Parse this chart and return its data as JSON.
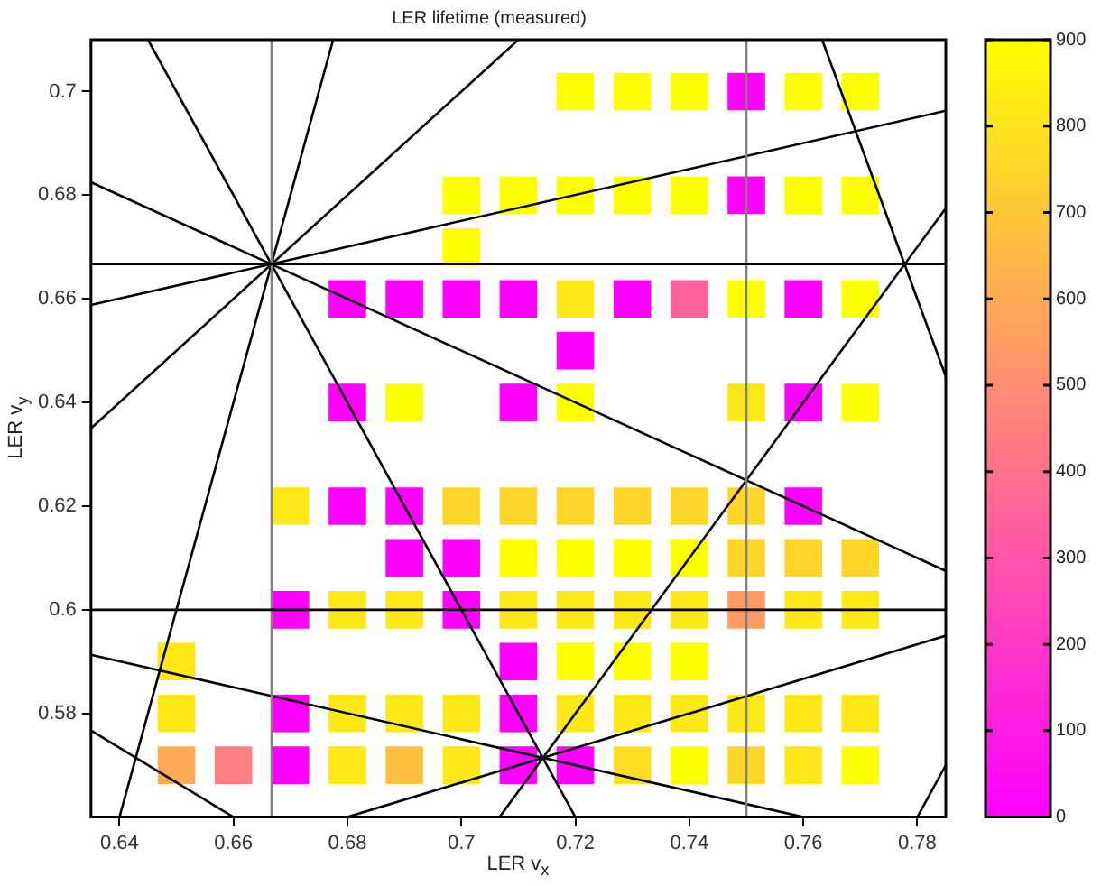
{
  "chart_data": {
    "type": "scatter",
    "title": "LER lifetime (measured)",
    "xlabel": "LER v$_{x}$",
    "ylabel": "LER v$_{y}$",
    "xlim": [
      0.635,
      0.785
    ],
    "ylim": [
      0.56,
      0.71
    ],
    "xticks": [
      0.64,
      0.66,
      0.68,
      0.7,
      0.72,
      0.74,
      0.76,
      0.78
    ],
    "yticks": [
      0.58,
      0.6,
      0.62,
      0.64,
      0.66,
      0.68,
      0.7
    ],
    "clim": [
      0,
      900
    ],
    "cticks": [
      0,
      100,
      200,
      300,
      400,
      500,
      600,
      700,
      800,
      900
    ],
    "grid": false,
    "legend": false,
    "series": [
      {
        "marker": "square",
        "colors": [
          "#ffff00",
          "#ffff00",
          "#ffff00",
          "#ff00ff",
          "#ffff00",
          "#ffff00",
          "#ffff00",
          "#ffff00",
          "#ffff00",
          "#ffff00",
          "#ffff00",
          "#ff00ff",
          "#ffff00",
          "#ffff00",
          "#ffff00",
          "#ff00ff",
          "#ff00ff",
          "#ff00ff",
          "#ff00ff",
          "#ffe817",
          "#ff00ff",
          "#ff639c",
          "#ffff00",
          "#ff00ff",
          "#ffff00",
          "#ff00ff",
          "#ff00ff",
          "#ffff00",
          "#ff00ff",
          "#ffff00",
          "#ffe817",
          "#ff00ff",
          "#ffff00",
          "#ffe817",
          "#ff00ff",
          "#ff00ff",
          "#ffd52b",
          "#ffd52b",
          "#ffd52b",
          "#ffd52b",
          "#ffd52b",
          "#ffd52b",
          "#ff00ff",
          "#ff00ff",
          "#ff00ff",
          "#ffff00",
          "#ffff00",
          "#ffff00",
          "#ffff00",
          "#ffd52b",
          "#ffd52b",
          "#ffd52b",
          "#ff00ff",
          "#ffe817",
          "#ffe817",
          "#ff00ff",
          "#ffe817",
          "#ffe817",
          "#ffe817",
          "#ffe817",
          "#ff9c63",
          "#ffe817",
          "#ffe817",
          "#ffe817",
          "#ff00ff",
          "#ffff00",
          "#ffff00",
          "#ffff00",
          "#ffe817",
          "#ff00ff",
          "#ffe817",
          "#ffe817",
          "#ffe817",
          "#ff00ff",
          "#ffe817",
          "#ffe817",
          "#ffe817",
          "#ffe817",
          "#ffe817",
          "#ffe817",
          "#ffaa55",
          "#ff8080",
          "#ff00ff",
          "#ffe817",
          "#ffc13e",
          "#ffe817",
          "#ff00ff",
          "#ff00ff",
          "#ffdd22",
          "#ffff00",
          "#ffd52b",
          "#ffe817",
          "#ffff00"
        ],
        "x": [
          0.72,
          0.73,
          0.74,
          0.75,
          0.76,
          0.77,
          0.7,
          0.71,
          0.72,
          0.73,
          0.74,
          0.75,
          0.76,
          0.77,
          0.7,
          0.68,
          0.69,
          0.7,
          0.71,
          0.72,
          0.73,
          0.74,
          0.75,
          0.76,
          0.77,
          0.72,
          0.68,
          0.69,
          0.71,
          0.72,
          0.75,
          0.76,
          0.77,
          0.67,
          0.68,
          0.69,
          0.7,
          0.71,
          0.72,
          0.73,
          0.74,
          0.75,
          0.76,
          0.69,
          0.7,
          0.71,
          0.72,
          0.73,
          0.74,
          0.75,
          0.76,
          0.77,
          0.67,
          0.68,
          0.69,
          0.7,
          0.71,
          0.72,
          0.73,
          0.74,
          0.75,
          0.76,
          0.77,
          0.65,
          0.71,
          0.72,
          0.73,
          0.74,
          0.65,
          0.67,
          0.68,
          0.69,
          0.7,
          0.71,
          0.72,
          0.73,
          0.74,
          0.75,
          0.76,
          0.77,
          0.65,
          0.66,
          0.67,
          0.68,
          0.69,
          0.7,
          0.71,
          0.72,
          0.73,
          0.74,
          0.75,
          0.76,
          0.77
        ],
        "values": [
          0.7,
          0.7,
          0.7,
          0.7,
          0.7,
          0.7,
          0.68,
          0.68,
          0.68,
          0.68,
          0.68,
          0.68,
          0.68,
          0.68,
          0.67,
          0.66,
          0.66,
          0.66,
          0.66,
          0.66,
          0.66,
          0.66,
          0.66,
          0.66,
          0.66,
          0.65,
          0.64,
          0.64,
          0.64,
          0.64,
          0.64,
          0.64,
          0.64,
          0.62,
          0.62,
          0.62,
          0.62,
          0.62,
          0.62,
          0.62,
          0.62,
          0.62,
          0.62,
          0.61,
          0.61,
          0.61,
          0.61,
          0.61,
          0.61,
          0.61,
          0.61,
          0.61,
          0.6,
          0.6,
          0.6,
          0.6,
          0.6,
          0.6,
          0.6,
          0.6,
          0.6,
          0.6,
          0.6,
          0.59,
          0.59,
          0.59,
          0.59,
          0.59,
          0.58,
          0.58,
          0.58,
          0.58,
          0.58,
          0.58,
          0.58,
          0.58,
          0.58,
          0.58,
          0.58,
          0.58,
          0.57,
          0.57,
          0.57,
          0.57,
          0.57,
          0.57,
          0.57,
          0.57,
          0.57,
          0.57,
          0.57,
          0.57,
          0.57
        ],
        "cvalues": [
          900,
          900,
          900,
          0,
          900,
          900,
          900,
          900,
          900,
          900,
          900,
          0,
          900,
          900,
          900,
          0,
          0,
          0,
          0,
          820,
          0,
          350,
          900,
          0,
          900,
          0,
          0,
          900,
          0,
          900,
          820,
          0,
          900,
          820,
          0,
          0,
          750,
          750,
          750,
          750,
          750,
          750,
          0,
          0,
          0,
          900,
          900,
          900,
          900,
          750,
          750,
          750,
          0,
          820,
          820,
          0,
          820,
          820,
          820,
          820,
          550,
          820,
          820,
          820,
          0,
          900,
          900,
          900,
          820,
          0,
          820,
          820,
          820,
          0,
          820,
          820,
          820,
          820,
          820,
          820,
          600,
          450,
          0,
          820,
          680,
          820,
          0,
          0,
          780,
          900,
          750,
          820,
          900
        ]
      },
      {
        "type": "line",
        "color": "#000000",
        "x": [
          0.645,
          0.72
        ],
        "values": [
          0.71,
          0.56
        ]
      },
      {
        "type": "line",
        "color": "#000000",
        "x": [
          0.6775,
          0.64
        ],
        "values": [
          0.71,
          0.56
        ]
      },
      {
        "type": "line",
        "color": "#000000",
        "x": [
          0.635,
          0.71
        ],
        "values": [
          0.635,
          0.71
        ]
      },
      {
        "type": "line",
        "color": "#000000",
        "x": [
          0.635,
          0.785
        ],
        "values": [
          0.6825,
          0.6075
        ]
      },
      {
        "type": "line",
        "color": "#000000",
        "x": [
          0.635,
          0.785
        ],
        "values": [
          0.6588,
          0.6963
        ]
      },
      {
        "type": "line",
        "color": "#000000",
        "x": [
          0.635,
          0.76
        ],
        "values": [
          0.5913,
          0.56
        ]
      },
      {
        "type": "line",
        "color": "#000000",
        "x": [
          0.68,
          0.785
        ],
        "values": [
          0.56,
          0.595
        ]
      },
      {
        "type": "line",
        "color": "#000000",
        "x": [
          0.7067,
          0.785
        ],
        "values": [
          0.56,
          0.6775
        ]
      },
      {
        "type": "line",
        "color": "#000000",
        "x": [
          0.635,
          0.66
        ],
        "values": [
          0.5767,
          0.56
        ]
      },
      {
        "type": "line",
        "color": "#000000",
        "x": [
          0.7633,
          0.785
        ],
        "values": [
          0.71,
          0.645
        ]
      },
      {
        "type": "line",
        "color": "#000000",
        "x": [
          0.78,
          0.785
        ],
        "values": [
          0.56,
          0.57
        ]
      }
    ],
    "ref_lines": [
      {
        "axis": "x",
        "value": 0.6667,
        "color": "#808080"
      },
      {
        "axis": "x",
        "value": 0.75,
        "color": "#808080"
      },
      {
        "axis": "y",
        "value": 0.6667,
        "color": "#000000"
      },
      {
        "axis": "y",
        "value": 0.6,
        "color": "#000000"
      }
    ]
  }
}
